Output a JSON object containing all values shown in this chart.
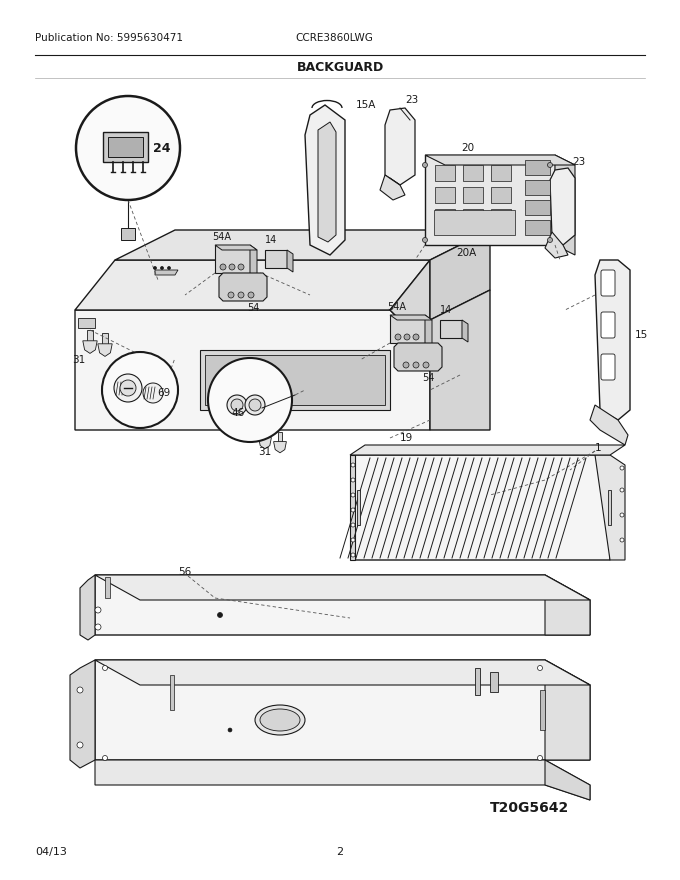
{
  "title": "BACKGUARD",
  "pub_no": "Publication No: 5995630471",
  "model": "CCRE3860LWG",
  "date": "04/13",
  "page": "2",
  "diagram_id": "T20G5642",
  "bg_color": "#ffffff",
  "lc": "#1a1a1a",
  "fig_width": 6.8,
  "fig_height": 8.8,
  "dpi": 100
}
